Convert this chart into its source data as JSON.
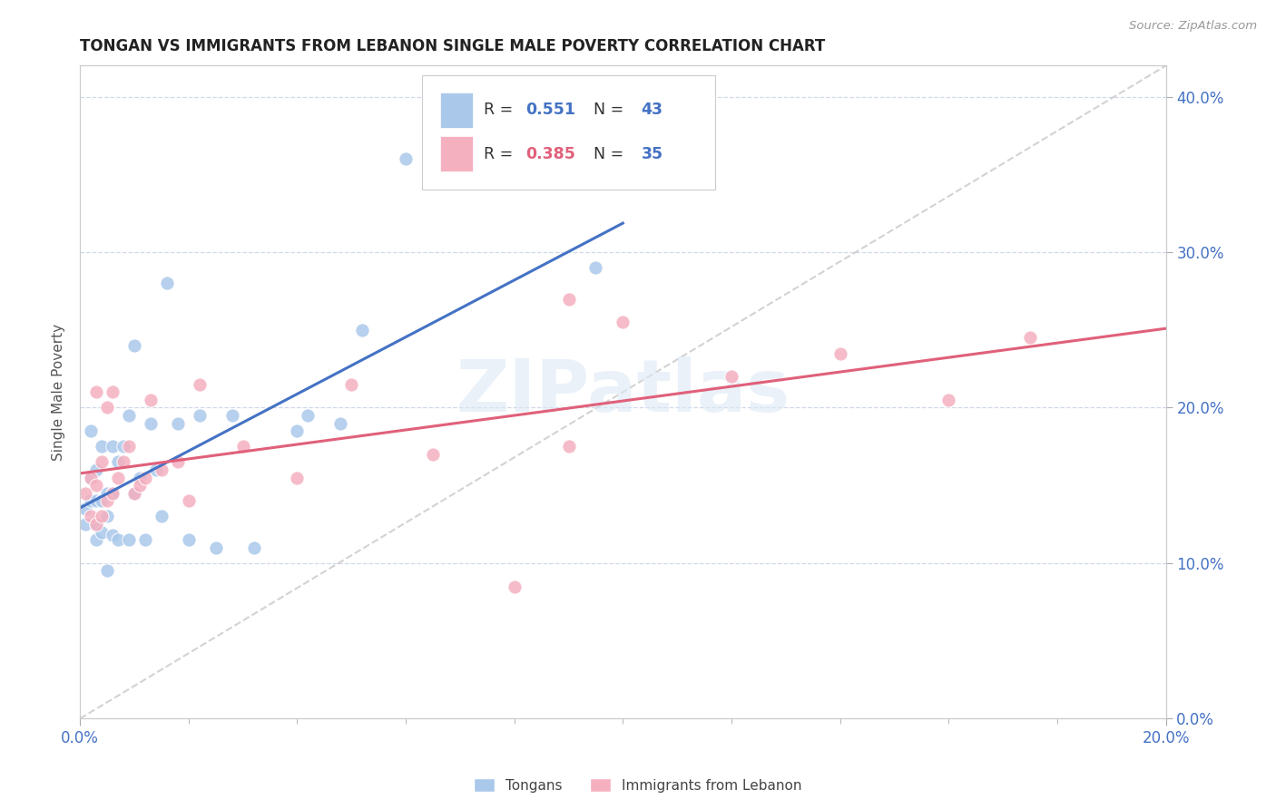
{
  "title": "TONGAN VS IMMIGRANTS FROM LEBANON SINGLE MALE POVERTY CORRELATION CHART",
  "source": "Source: ZipAtlas.com",
  "ylabel": "Single Male Poverty",
  "legend_label1": "Tongans",
  "legend_label2": "Immigrants from Lebanon",
  "R1": "0.551",
  "N1": "43",
  "R2": "0.385",
  "N2": "35",
  "color1": "#aac8ea",
  "color2": "#f5b0c0",
  "line_color1": "#4472c4",
  "line_color2": "#e0607a",
  "diag_color": "#c8c8c8",
  "xlim": [
    0.0,
    0.2
  ],
  "ylim": [
    0.0,
    0.42
  ],
  "xtick_positions": [
    0.0,
    0.2
  ],
  "xtick_labels": [
    "0.0%",
    "20.0%"
  ],
  "yticks": [
    0.0,
    0.1,
    0.2,
    0.3,
    0.4
  ],
  "background_color": "#ffffff",
  "grid_color": "#d0d8e8",
  "tongans_x": [
    0.001,
    0.001,
    0.002,
    0.002,
    0.002,
    0.003,
    0.003,
    0.003,
    0.003,
    0.004,
    0.004,
    0.004,
    0.005,
    0.005,
    0.005,
    0.006,
    0.006,
    0.006,
    0.007,
    0.007,
    0.008,
    0.009,
    0.009,
    0.01,
    0.01,
    0.011,
    0.012,
    0.013,
    0.014,
    0.015,
    0.016,
    0.018,
    0.02,
    0.022,
    0.025,
    0.028,
    0.032,
    0.04,
    0.042,
    0.048,
    0.052,
    0.06,
    0.095
  ],
  "tongans_y": [
    0.125,
    0.135,
    0.14,
    0.155,
    0.185,
    0.115,
    0.125,
    0.14,
    0.16,
    0.12,
    0.14,
    0.175,
    0.095,
    0.13,
    0.145,
    0.118,
    0.145,
    0.175,
    0.115,
    0.165,
    0.175,
    0.115,
    0.195,
    0.145,
    0.24,
    0.155,
    0.115,
    0.19,
    0.16,
    0.13,
    0.28,
    0.19,
    0.115,
    0.195,
    0.11,
    0.195,
    0.11,
    0.185,
    0.195,
    0.19,
    0.25,
    0.36,
    0.29
  ],
  "lebanon_x": [
    0.001,
    0.002,
    0.002,
    0.003,
    0.003,
    0.003,
    0.004,
    0.004,
    0.005,
    0.005,
    0.006,
    0.006,
    0.007,
    0.008,
    0.009,
    0.01,
    0.011,
    0.012,
    0.013,
    0.015,
    0.018,
    0.02,
    0.022,
    0.03,
    0.04,
    0.05,
    0.065,
    0.08,
    0.09,
    0.1,
    0.12,
    0.14,
    0.16,
    0.175,
    0.09
  ],
  "lebanon_y": [
    0.145,
    0.13,
    0.155,
    0.125,
    0.15,
    0.21,
    0.13,
    0.165,
    0.14,
    0.2,
    0.145,
    0.21,
    0.155,
    0.165,
    0.175,
    0.145,
    0.15,
    0.155,
    0.205,
    0.16,
    0.165,
    0.14,
    0.215,
    0.175,
    0.155,
    0.215,
    0.17,
    0.085,
    0.175,
    0.255,
    0.22,
    0.235,
    0.205,
    0.245,
    0.27
  ],
  "watermark_text": "ZIPatlas",
  "watermark_color": "#dce8f5"
}
